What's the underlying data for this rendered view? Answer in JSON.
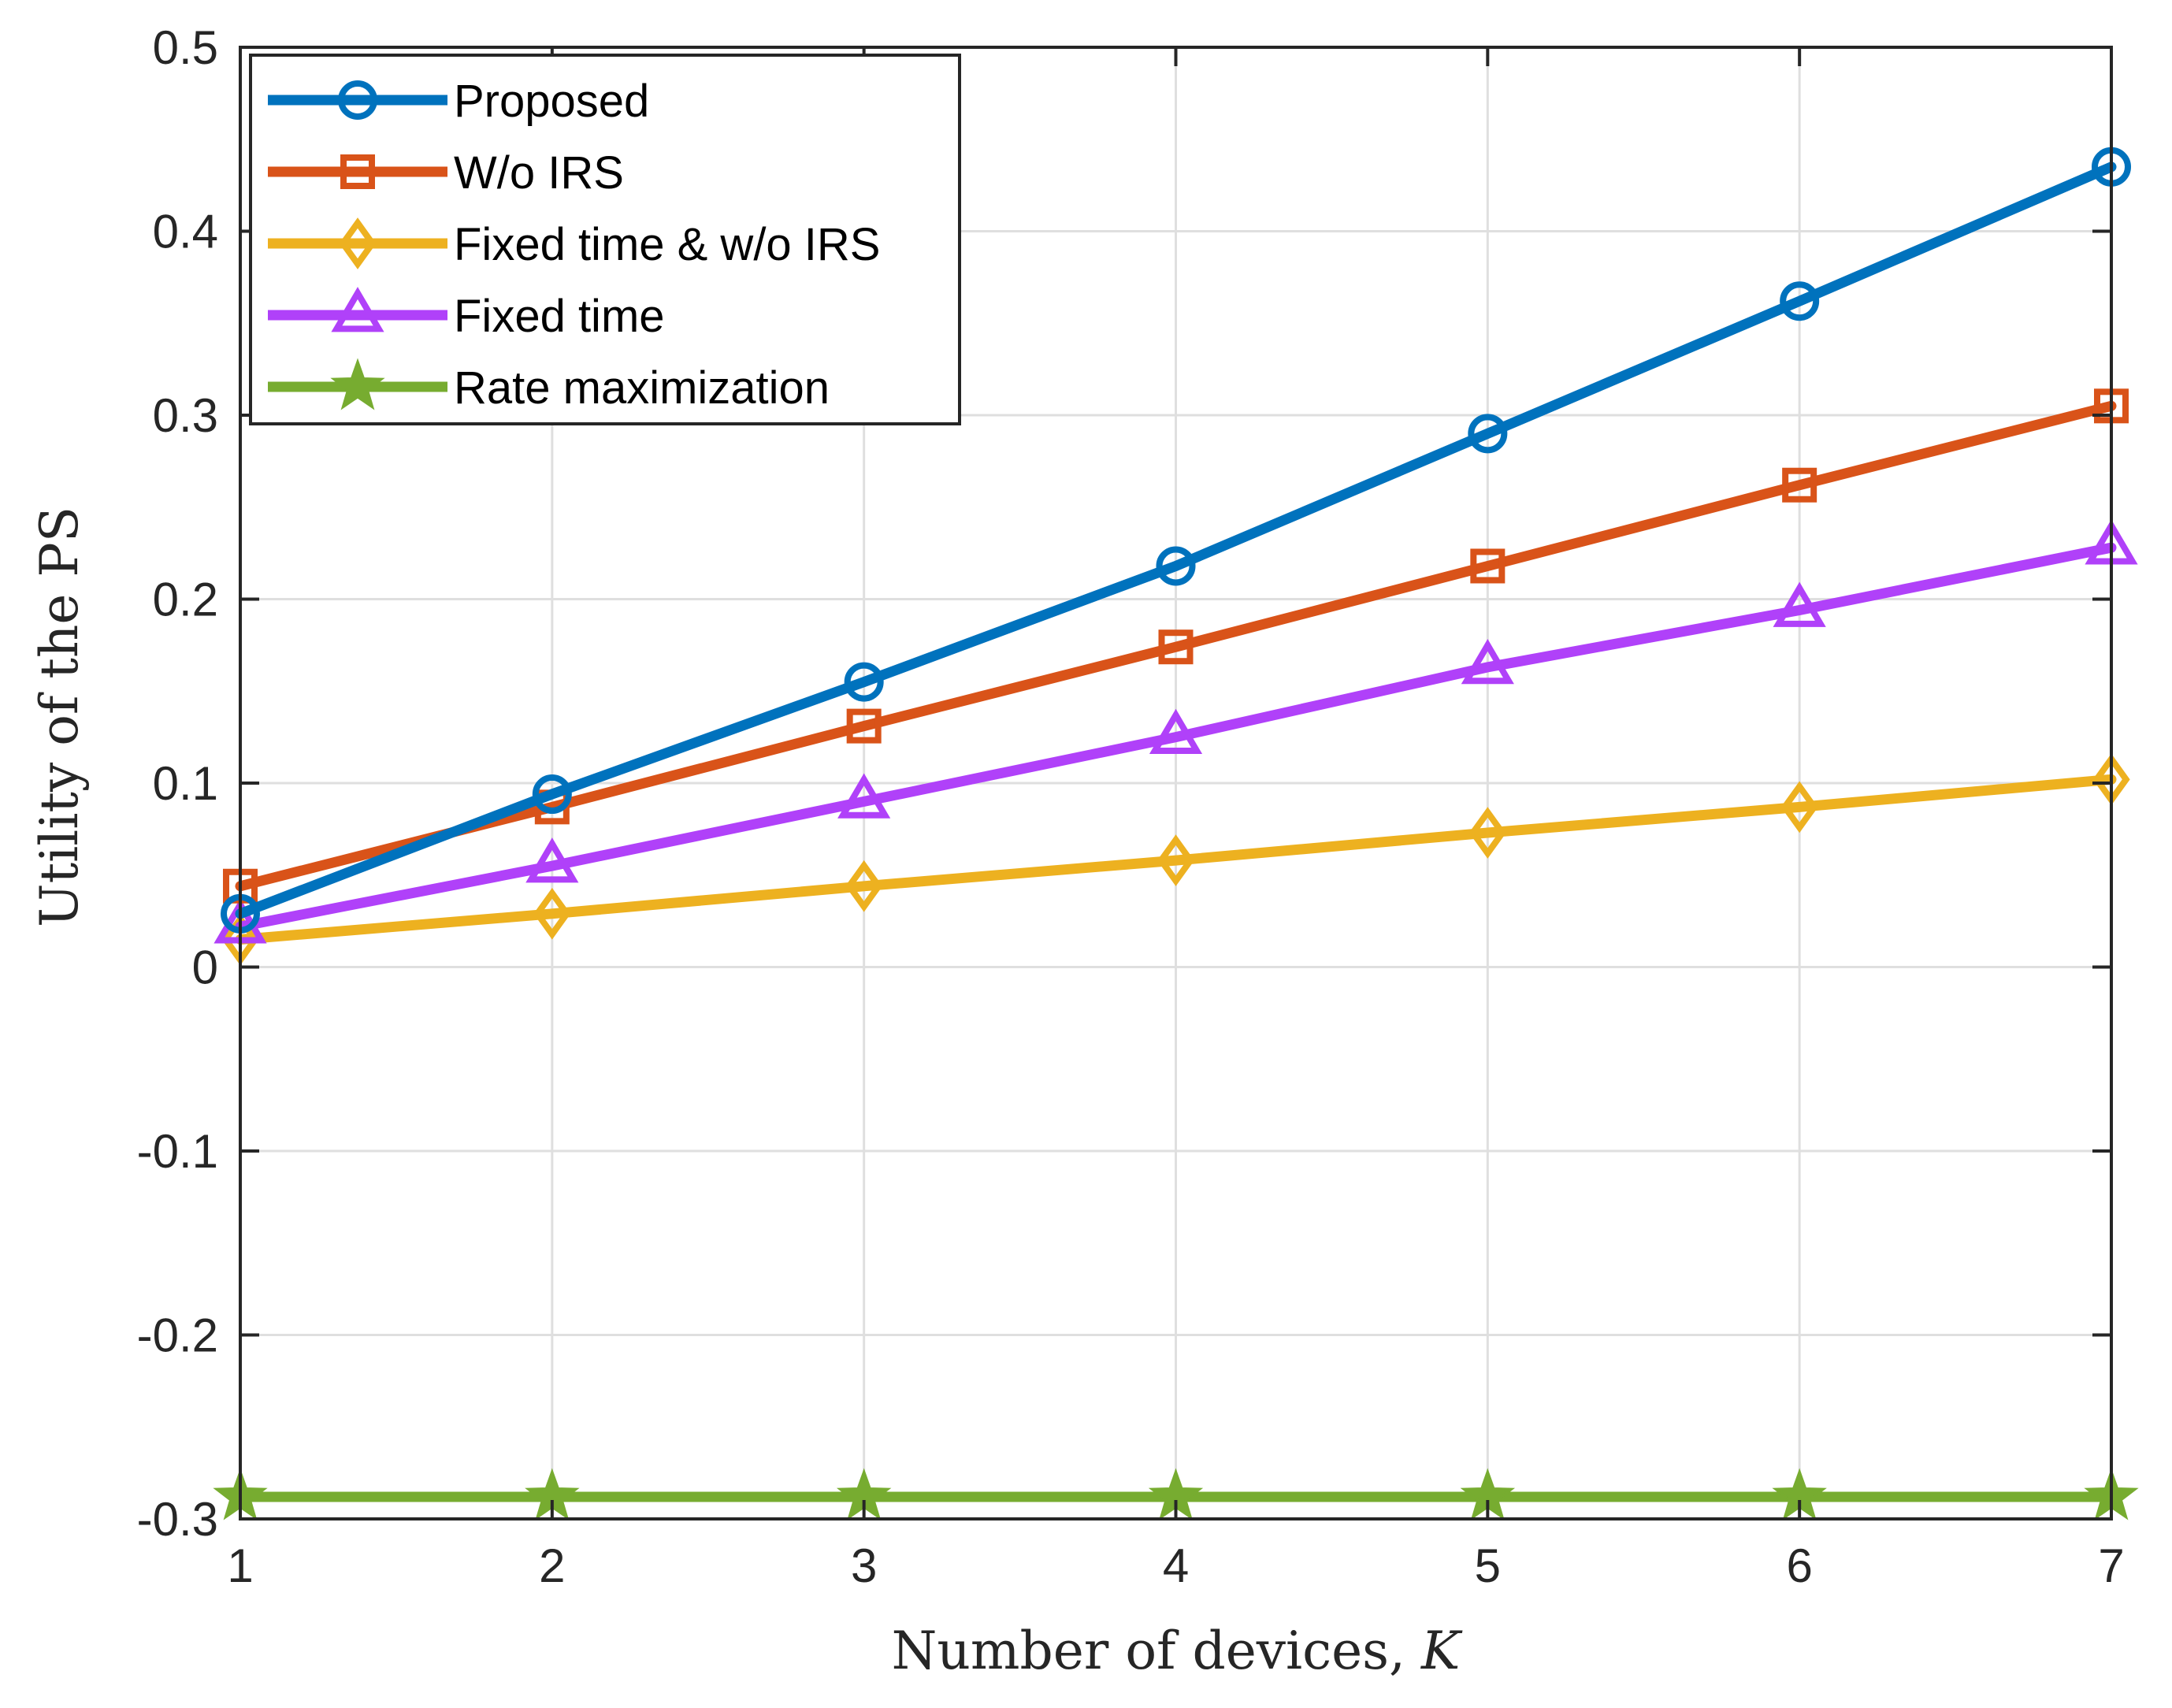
{
  "chart_data": {
    "type": "line",
    "title": "",
    "xlabel": "Number of devices,",
    "xlabel_var": "K",
    "ylabel": "Utility of the PS",
    "xlim": [
      1,
      7
    ],
    "ylim": [
      -0.3,
      0.5
    ],
    "x": [
      1,
      2,
      3,
      4,
      5,
      6,
      7
    ],
    "xticks": [
      "1",
      "2",
      "3",
      "4",
      "5",
      "6",
      "7"
    ],
    "yticks": [
      {
        "value": -0.3,
        "label": "-0.3"
      },
      {
        "value": -0.2,
        "label": "-0.2"
      },
      {
        "value": -0.1,
        "label": "-0.1"
      },
      {
        "value": 0,
        "label": "0"
      },
      {
        "value": 0.1,
        "label": "0.1"
      },
      {
        "value": 0.2,
        "label": "0.2"
      },
      {
        "value": 0.3,
        "label": "0.3"
      },
      {
        "value": 0.4,
        "label": "0.4"
      },
      {
        "value": 0.5,
        "label": "0.5"
      }
    ],
    "grid": true,
    "legend_position": "top-left",
    "series": [
      {
        "name": "Proposed",
        "color": "#0072BD",
        "marker": "circle",
        "values": [
          0.029,
          0.094,
          0.155,
          0.218,
          0.29,
          0.362,
          0.435
        ]
      },
      {
        "name": "W/o IRS",
        "color": "#D95319",
        "marker": "square",
        "values": [
          0.044,
          0.087,
          0.131,
          0.174,
          0.218,
          0.262,
          0.305
        ]
      },
      {
        "name": "Fixed time & w/o IRS",
        "color": "#EDB120",
        "marker": "diamond",
        "values": [
          0.015,
          0.029,
          0.044,
          0.058,
          0.073,
          0.087,
          0.102
        ]
      },
      {
        "name": "Fixed time",
        "color": "#B041F9",
        "marker": "triangle",
        "values": [
          0.022,
          0.055,
          0.09,
          0.125,
          0.163,
          0.194,
          0.228
        ]
      },
      {
        "name": "Rate maximization",
        "color": "#77AC30",
        "marker": "star",
        "values": [
          -0.288,
          -0.288,
          -0.288,
          -0.288,
          -0.288,
          -0.288,
          -0.288
        ]
      }
    ]
  }
}
